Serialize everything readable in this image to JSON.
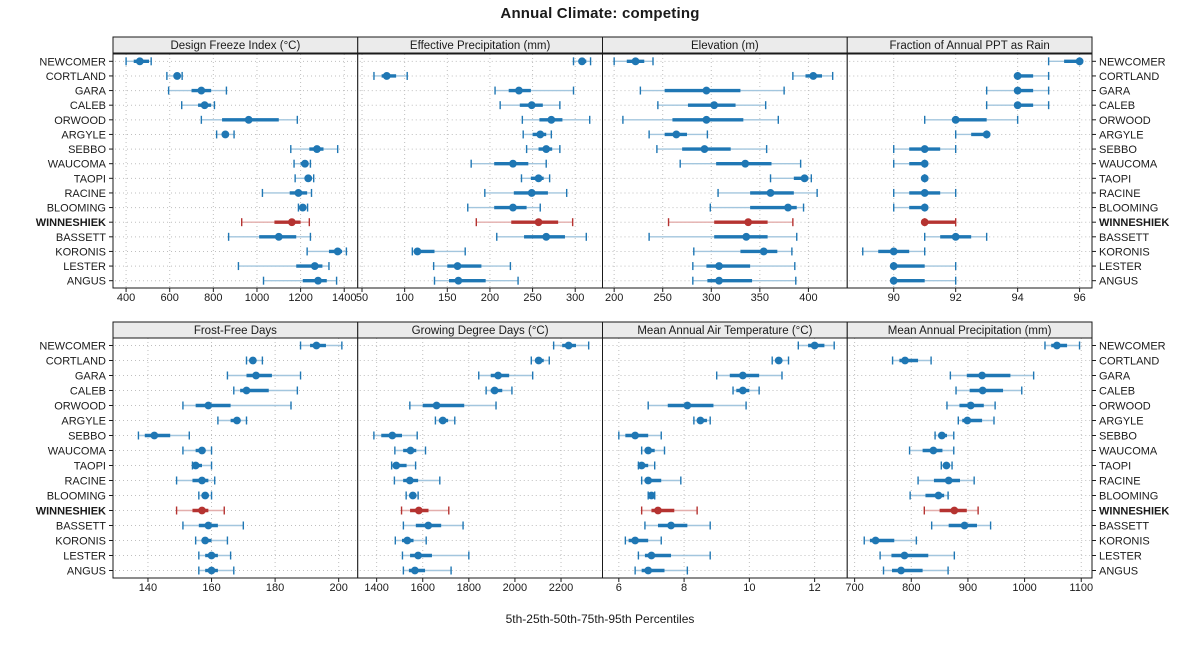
{
  "chart_data": {
    "type": "dotplot-trellis",
    "title": "Annual Climate: competing",
    "xlabel": "5th-25th-50th-75th-95th Percentiles",
    "percentile_labels": [
      "5th",
      "25th",
      "50th",
      "75th",
      "95th"
    ],
    "series": [
      "NEWCOMER",
      "CORTLAND",
      "GARA",
      "CALEB",
      "ORWOOD",
      "ARGYLE",
      "SEBBO",
      "WAUCOMA",
      "TAOPI",
      "RACINE",
      "BLOOMING",
      "WINNESHIEK",
      "BASSETT",
      "KORONIS",
      "LESTER",
      "ANGUS"
    ],
    "highlighted_series": "WINNESHIEK",
    "legend_position": "none",
    "grid": true,
    "colors": {
      "normal": "#1f77b4",
      "normal_light": "#a3c6de",
      "highlight": "#b53331",
      "highlight_light": "#e3aeac",
      "grid": "#bfbfbf",
      "strip_bg": "#ebebeb",
      "border": "#1a1a1a",
      "text": "#1a1a1a"
    },
    "panels": [
      {
        "title": "Design Freeze Index (°C)",
        "xlim": [
          340,
          1462
        ],
        "ticks": [
          400,
          600,
          800,
          1000,
          1200,
          1400
        ],
        "values": {
          "NEWCOMER": [
            400,
            435,
            463,
            505,
            515
          ],
          "CORTLAND": [
            587,
            620,
            634,
            648,
            657
          ],
          "GARA": [
            595,
            700,
            745,
            790,
            860
          ],
          "CALEB": [
            655,
            730,
            760,
            790,
            805
          ],
          "ORWOOD": [
            745,
            840,
            962,
            1100,
            1185
          ],
          "ARGYLE": [
            815,
            840,
            855,
            870,
            895
          ],
          "SEBBO": [
            1155,
            1240,
            1275,
            1305,
            1370
          ],
          "WAUCOMA": [
            1170,
            1200,
            1220,
            1235,
            1245
          ],
          "TAOPI": [
            1175,
            1220,
            1235,
            1250,
            1260
          ],
          "RACINE": [
            1025,
            1150,
            1190,
            1230,
            1250
          ],
          "BLOOMING": [
            1190,
            1200,
            1210,
            1222,
            1232
          ],
          "WINNESHIEK": [
            930,
            1080,
            1160,
            1200,
            1240
          ],
          "BASSETT": [
            870,
            1010,
            1100,
            1180,
            1245
          ],
          "KORONIS": [
            1230,
            1330,
            1370,
            1390,
            1410
          ],
          "LESTER": [
            915,
            1180,
            1265,
            1300,
            1330
          ],
          "ANGUS": [
            1030,
            1210,
            1280,
            1320,
            1365
          ]
        }
      },
      {
        "title": "Effective Precipitation (mm)",
        "xlim": [
          45,
          332
        ],
        "ticks": [
          50,
          100,
          150,
          200,
          250,
          300
        ],
        "values": {
          "NEWCOMER": [
            298,
            305,
            308,
            313,
            318
          ],
          "CORTLAND": [
            64,
            73,
            79,
            90,
            103
          ],
          "GARA": [
            206,
            222,
            234,
            248,
            298
          ],
          "CALEB": [
            212,
            235,
            249,
            262,
            282
          ],
          "ORWOOD": [
            238,
            258,
            272,
            285,
            317
          ],
          "ARGYLE": [
            239,
            250,
            259,
            266,
            272
          ],
          "SEBBO": [
            243,
            257,
            266,
            273,
            282
          ],
          "WAUCOMA": [
            178,
            205,
            227,
            245,
            266
          ],
          "TAOPI": [
            237,
            248,
            257,
            263,
            270
          ],
          "RACINE": [
            194,
            228,
            249,
            268,
            290
          ],
          "BLOOMING": [
            174,
            205,
            227,
            243,
            259
          ],
          "WINNESHIEK": [
            184,
            225,
            257,
            280,
            297
          ],
          "BASSETT": [
            208,
            240,
            266,
            288,
            313
          ],
          "KORONIS": [
            109,
            112,
            115,
            135,
            171
          ],
          "LESTER": [
            134,
            150,
            162,
            190,
            224
          ],
          "ANGUS": [
            135,
            152,
            163,
            195,
            233
          ]
        }
      },
      {
        "title": "Elevation (m)",
        "xlim": [
          188,
          440
        ],
        "ticks": [
          200,
          250,
          300,
          350,
          400
        ],
        "values": {
          "NEWCOMER": [
            200,
            213,
            222,
            231,
            240
          ],
          "CORTLAND": [
            384,
            397,
            405,
            414,
            425
          ],
          "GARA": [
            227,
            252,
            295,
            330,
            375
          ],
          "CALEB": [
            245,
            276,
            303,
            325,
            356
          ],
          "ORWOOD": [
            209,
            260,
            295,
            333,
            369
          ],
          "ARGYLE": [
            236,
            252,
            264,
            275,
            296
          ],
          "SEBBO": [
            244,
            270,
            293,
            320,
            357
          ],
          "WAUCOMA": [
            268,
            305,
            335,
            362,
            392
          ],
          "TAOPI": [
            361,
            385,
            396,
            400,
            403
          ],
          "RACINE": [
            307,
            340,
            361,
            385,
            409
          ],
          "BLOOMING": [
            299,
            340,
            379,
            388,
            395
          ],
          "WINNESHIEK": [
            256,
            303,
            338,
            358,
            384
          ],
          "BASSETT": [
            236,
            303,
            336,
            358,
            388
          ],
          "KORONIS": [
            282,
            330,
            354,
            368,
            383
          ],
          "LESTER": [
            281,
            295,
            308,
            340,
            386
          ],
          "ANGUS": [
            281,
            296,
            308,
            342,
            387
          ]
        }
      },
      {
        "title": "Fraction of Annual PPT as Rain",
        "xlim": [
          88.5,
          96.4
        ],
        "ticks": [
          90,
          92,
          94,
          96
        ],
        "values": {
          "NEWCOMER": [
            95,
            95.5,
            96,
            96,
            96
          ],
          "CORTLAND": [
            94,
            94,
            94,
            94.5,
            95
          ],
          "GARA": [
            93,
            94,
            94,
            94.5,
            95
          ],
          "CALEB": [
            93,
            94,
            94,
            94.5,
            95
          ],
          "ORWOOD": [
            91,
            92,
            92,
            93,
            94
          ],
          "ARGYLE": [
            92,
            92.5,
            93,
            93,
            93
          ],
          "SEBBO": [
            90,
            90.5,
            91,
            91.5,
            92
          ],
          "WAUCOMA": [
            90,
            90.5,
            91,
            91,
            91
          ],
          "TAOPI": [
            91,
            91,
            91,
            91,
            91
          ],
          "RACINE": [
            90,
            90.5,
            91,
            91.5,
            92
          ],
          "BLOOMING": [
            90,
            90.5,
            91,
            91,
            91
          ],
          "WINNESHIEK": [
            91,
            91,
            91,
            92,
            92
          ],
          "BASSETT": [
            91,
            91.5,
            92,
            92.5,
            93
          ],
          "KORONIS": [
            89,
            89.5,
            90,
            90.5,
            91
          ],
          "LESTER": [
            90,
            90,
            90,
            91,
            92
          ],
          "ANGUS": [
            90,
            90,
            90,
            91,
            92
          ]
        }
      },
      {
        "title": "Frost-Free Days",
        "xlim": [
          129,
          206
        ],
        "ticks": [
          140,
          160,
          180,
          200
        ],
        "values": {
          "NEWCOMER": [
            188,
            191,
            193,
            196,
            201
          ],
          "CORTLAND": [
            171,
            172,
            173,
            174,
            176
          ],
          "GARA": [
            165,
            171,
            174,
            179,
            188
          ],
          "CALEB": [
            167,
            169,
            171,
            178,
            187
          ],
          "ORWOOD": [
            151,
            155,
            159,
            166,
            185
          ],
          "ARGYLE": [
            162,
            166,
            168,
            169,
            171
          ],
          "SEBBO": [
            137,
            139,
            142,
            147,
            153
          ],
          "WAUCOMA": [
            151,
            155,
            157,
            158,
            160
          ],
          "TAOPI": [
            154,
            155,
            155,
            157,
            160
          ],
          "RACINE": [
            149,
            154,
            157,
            159,
            161
          ],
          "BLOOMING": [
            156,
            157,
            158,
            159,
            160
          ],
          "WINNESHIEK": [
            149,
            154,
            157,
            159,
            164
          ],
          "BASSETT": [
            151,
            156,
            159,
            162,
            170
          ],
          "KORONIS": [
            155,
            157,
            158,
            160,
            165
          ],
          "LESTER": [
            156,
            158,
            160,
            162,
            166
          ],
          "ANGUS": [
            156,
            158,
            160,
            162,
            167
          ]
        }
      },
      {
        "title": "Growing Degree Days (°C)",
        "xlim": [
          1318,
          2380
        ],
        "ticks": [
          1400,
          1600,
          1800,
          2000,
          2200
        ],
        "values": {
          "NEWCOMER": [
            2168,
            2205,
            2233,
            2265,
            2320
          ],
          "CORTLAND": [
            2071,
            2088,
            2103,
            2125,
            2149
          ],
          "GARA": [
            1843,
            1895,
            1927,
            1975,
            2077
          ],
          "CALEB": [
            1875,
            1895,
            1912,
            1945,
            1987
          ],
          "ORWOOD": [
            1544,
            1600,
            1660,
            1780,
            1918
          ],
          "ARGYLE": [
            1655,
            1670,
            1687,
            1710,
            1739
          ],
          "SEBBO": [
            1388,
            1420,
            1468,
            1510,
            1576
          ],
          "WAUCOMA": [
            1479,
            1515,
            1547,
            1572,
            1612
          ],
          "TAOPI": [
            1465,
            1475,
            1485,
            1530,
            1569
          ],
          "RACINE": [
            1477,
            1515,
            1544,
            1580,
            1674
          ],
          "BLOOMING": [
            1528,
            1545,
            1557,
            1568,
            1580
          ],
          "WINNESHIEK": [
            1508,
            1545,
            1583,
            1625,
            1713
          ],
          "BASSETT": [
            1516,
            1570,
            1624,
            1680,
            1775
          ],
          "KORONIS": [
            1481,
            1510,
            1533,
            1560,
            1615
          ],
          "LESTER": [
            1512,
            1545,
            1580,
            1640,
            1800
          ],
          "ANGUS": [
            1516,
            1540,
            1566,
            1610,
            1723
          ]
        }
      },
      {
        "title": "Mean Annual Air Temperature (°C)",
        "xlim": [
          5.5,
          13.0
        ],
        "ticks": [
          6,
          8,
          10,
          12
        ],
        "values": {
          "NEWCOMER": [
            11.5,
            11.8,
            12.0,
            12.3,
            12.6
          ],
          "CORTLAND": [
            10.7,
            10.8,
            10.9,
            11.0,
            11.2
          ],
          "GARA": [
            9.0,
            9.4,
            9.8,
            10.3,
            11.0
          ],
          "CALEB": [
            9.5,
            9.6,
            9.8,
            10.0,
            10.3
          ],
          "ORWOOD": [
            6.9,
            7.5,
            8.1,
            8.9,
            9.9
          ],
          "ARGYLE": [
            8.3,
            8.4,
            8.5,
            8.7,
            8.8
          ],
          "SEBBO": [
            6.0,
            6.2,
            6.5,
            6.9,
            7.3
          ],
          "WAUCOMA": [
            6.7,
            6.8,
            6.9,
            7.1,
            7.4
          ],
          "TAOPI": [
            6.6,
            6.6,
            6.7,
            6.9,
            7.1
          ],
          "RACINE": [
            6.7,
            6.8,
            6.9,
            7.3,
            7.9
          ],
          "BLOOMING": [
            6.9,
            6.9,
            7.0,
            7.0,
            7.1
          ],
          "WINNESHIEK": [
            6.7,
            7.0,
            7.2,
            7.7,
            8.4
          ],
          "BASSETT": [
            6.8,
            7.2,
            7.6,
            8.1,
            8.8
          ],
          "KORONIS": [
            6.2,
            6.3,
            6.5,
            6.9,
            7.3
          ],
          "LESTER": [
            6.6,
            6.8,
            7.0,
            7.6,
            8.8
          ],
          "ANGUS": [
            6.5,
            6.7,
            6.9,
            7.4,
            8.1
          ]
        }
      },
      {
        "title": "Mean Annual Precipitation (mm)",
        "xlim": [
          687,
          1119
        ],
        "ticks": [
          700,
          800,
          900,
          1000,
          1100
        ],
        "values": {
          "NEWCOMER": [
            1036,
            1047,
            1057,
            1075,
            1097
          ],
          "CORTLAND": [
            767,
            779,
            789,
            812,
            835
          ],
          "GARA": [
            869,
            898,
            925,
            975,
            1016
          ],
          "CALEB": [
            879,
            903,
            926,
            962,
            995
          ],
          "ORWOOD": [
            863,
            885,
            905,
            928,
            948
          ],
          "ARGYLE": [
            883,
            890,
            899,
            925,
            946
          ],
          "SEBBO": [
            842,
            848,
            854,
            863,
            875
          ],
          "WAUCOMA": [
            797,
            820,
            839,
            855,
            875
          ],
          "TAOPI": [
            853,
            858,
            862,
            867,
            872
          ],
          "RACINE": [
            812,
            840,
            866,
            886,
            911
          ],
          "BLOOMING": [
            798,
            825,
            848,
            858,
            865
          ],
          "WINNESHIEK": [
            823,
            850,
            876,
            898,
            918
          ],
          "BASSETT": [
            836,
            866,
            894,
            916,
            940
          ],
          "KORONIS": [
            717,
            727,
            737,
            770,
            809
          ],
          "LESTER": [
            745,
            765,
            788,
            830,
            876
          ],
          "ANGUS": [
            751,
            766,
            782,
            820,
            865
          ]
        }
      }
    ]
  }
}
